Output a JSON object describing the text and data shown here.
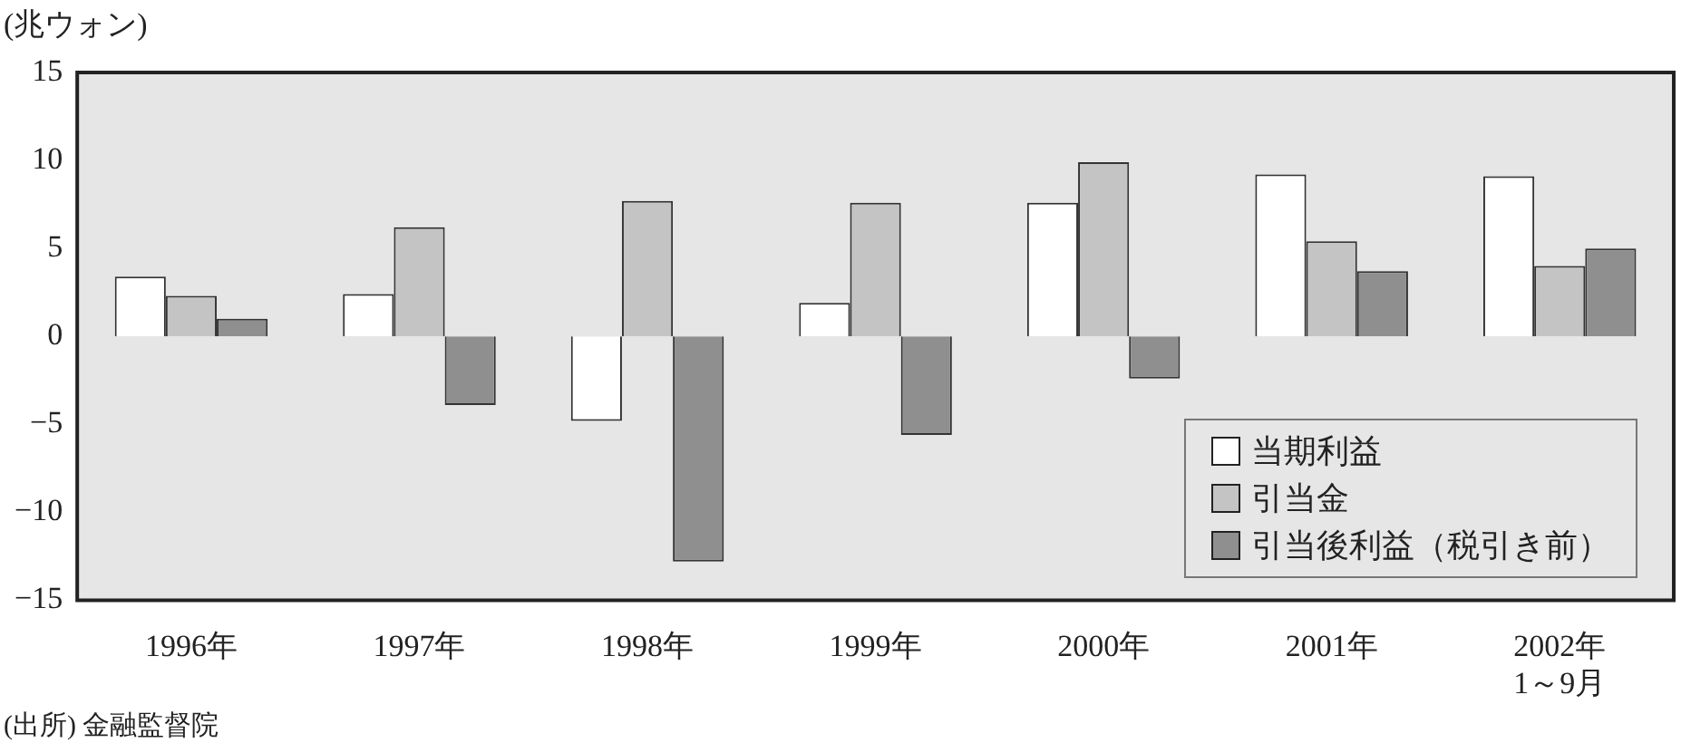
{
  "chart_data": {
    "type": "bar",
    "ylabel": "(兆ウォン)",
    "categories": [
      "1996年",
      "1997年",
      "1998年",
      "1999年",
      "2000年",
      "2001年",
      "2002年\n1～9月"
    ],
    "series": [
      {
        "name": "当期利益",
        "color": "#ffffff",
        "values": [
          3.4,
          2.4,
          -4.8,
          1.9,
          7.6,
          9.2,
          9.1
        ]
      },
      {
        "name": "引当金",
        "color": "#c4c4c4",
        "values": [
          2.3,
          6.2,
          7.7,
          7.6,
          9.9,
          5.4,
          4.0
        ]
      },
      {
        "name": "引当後利益（税引き前）",
        "color": "#8f8f8f",
        "values": [
          1.0,
          -3.9,
          -12.8,
          -5.6,
          -2.4,
          3.7,
          5.0
        ]
      }
    ],
    "ylim": [
      -15,
      15
    ],
    "yticks": [
      -15,
      -10,
      -5,
      0,
      5,
      10,
      15
    ],
    "grid": false,
    "legend": "bottom right",
    "annotations": [
      "(出所) 金融監督院"
    ]
  }
}
